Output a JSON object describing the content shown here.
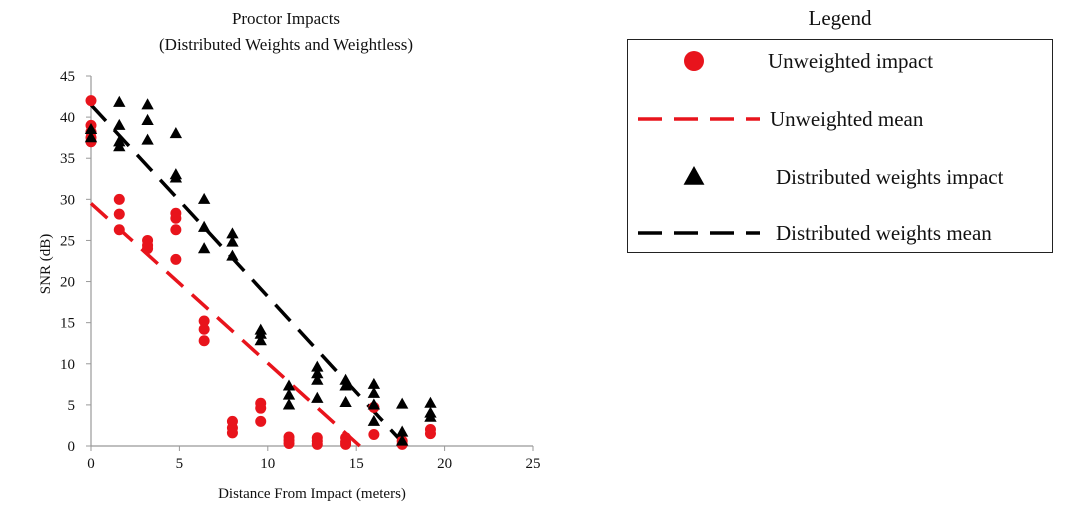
{
  "chart_data": {
    "type": "scatter",
    "title": "Proctor Impacts",
    "subtitle": "(Distributed Weights and Weightless)",
    "xlabel": "Distance From Impact (meters)",
    "ylabel": "SNR (dB)",
    "xlim": [
      0,
      25
    ],
    "ylim": [
      0,
      45
    ],
    "xticks": [
      0,
      5,
      10,
      15,
      20,
      25
    ],
    "yticks": [
      0,
      5,
      10,
      15,
      20,
      25,
      30,
      35,
      40,
      45
    ],
    "grid": false,
    "legend_title": "Legend",
    "legend_position": "right",
    "series": [
      {
        "name": "Unweighted impact",
        "marker": "circle",
        "color": "#e8141c",
        "points": [
          [
            0,
            42
          ],
          [
            0,
            39
          ],
          [
            0,
            38.2
          ],
          [
            0,
            37.5
          ],
          [
            0,
            37
          ],
          [
            1.6,
            30
          ],
          [
            1.6,
            28.2
          ],
          [
            1.6,
            26.3
          ],
          [
            3.2,
            25
          ],
          [
            3.2,
            24.4
          ],
          [
            3.2,
            24
          ],
          [
            4.8,
            28.3
          ],
          [
            4.8,
            27.7
          ],
          [
            4.8,
            26.3
          ],
          [
            4.8,
            22.7
          ],
          [
            6.4,
            15.2
          ],
          [
            6.4,
            14.2
          ],
          [
            6.4,
            12.8
          ],
          [
            8,
            3
          ],
          [
            8,
            2.2
          ],
          [
            8,
            1.6
          ],
          [
            9.6,
            5.2
          ],
          [
            9.6,
            4.6
          ],
          [
            9.6,
            3
          ],
          [
            11.2,
            1.1
          ],
          [
            11.2,
            0.7
          ],
          [
            11.2,
            0.3
          ],
          [
            12.8,
            1
          ],
          [
            12.8,
            0.6
          ],
          [
            12.8,
            0.2
          ],
          [
            14.4,
            1
          ],
          [
            14.4,
            0.5
          ],
          [
            14.4,
            0.2
          ],
          [
            16,
            4.7
          ],
          [
            16,
            1.4
          ],
          [
            17.6,
            0.6
          ],
          [
            17.6,
            0.2
          ],
          [
            19.2,
            2
          ],
          [
            19.2,
            1.5
          ]
        ]
      },
      {
        "name": "Unweighted mean",
        "type": "line",
        "style": "dashed",
        "color": "#e8141c",
        "points": [
          [
            0,
            29.5
          ],
          [
            15.2,
            0
          ]
        ]
      },
      {
        "name": "Distributed weights impact",
        "marker": "triangle",
        "color": "#000000",
        "points": [
          [
            0,
            38.5
          ],
          [
            0,
            37.5
          ],
          [
            1.6,
            41.8
          ],
          [
            1.6,
            39
          ],
          [
            1.6,
            37
          ],
          [
            1.6,
            36.4
          ],
          [
            3.2,
            41.5
          ],
          [
            3.2,
            39.6
          ],
          [
            3.2,
            37.2
          ],
          [
            4.8,
            38
          ],
          [
            4.8,
            33
          ],
          [
            4.8,
            32.6
          ],
          [
            6.4,
            30
          ],
          [
            6.4,
            26.6
          ],
          [
            6.4,
            24
          ],
          [
            8,
            25.8
          ],
          [
            8,
            24.8
          ],
          [
            8,
            23.1
          ],
          [
            9.6,
            14.1
          ],
          [
            9.6,
            13.6
          ],
          [
            9.6,
            12.8
          ],
          [
            11.2,
            7.3
          ],
          [
            11.2,
            6.2
          ],
          [
            11.2,
            5
          ],
          [
            12.8,
            9.6
          ],
          [
            12.8,
            8.8
          ],
          [
            12.8,
            8
          ],
          [
            12.8,
            5.8
          ],
          [
            14.4,
            8
          ],
          [
            14.4,
            7.3
          ],
          [
            14.4,
            5.3
          ],
          [
            16,
            7.5
          ],
          [
            16,
            6.4
          ],
          [
            16,
            5
          ],
          [
            16,
            3
          ],
          [
            17.6,
            5.1
          ],
          [
            17.6,
            1.7
          ],
          [
            17.6,
            0.6
          ],
          [
            19.2,
            5.2
          ],
          [
            19.2,
            4
          ],
          [
            19.2,
            3.5
          ]
        ]
      },
      {
        "name": "Distributed weights mean",
        "type": "line",
        "style": "dashed",
        "color": "#000000",
        "points": [
          [
            0,
            41.5
          ],
          [
            17.8,
            0
          ]
        ]
      }
    ]
  }
}
